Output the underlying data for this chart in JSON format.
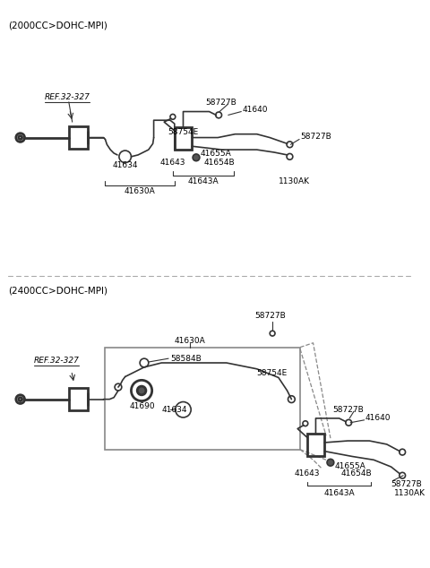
{
  "bg_color": "#ffffff",
  "line_color": "#333333",
  "gray": "#888888",
  "title1": "(2000CC>DOHC-MPI)",
  "title2": "(2400CC>DOHC-MPI)",
  "ref_label": "REF.32-327",
  "figsize": [
    4.8,
    6.34
  ],
  "dpi": 100
}
